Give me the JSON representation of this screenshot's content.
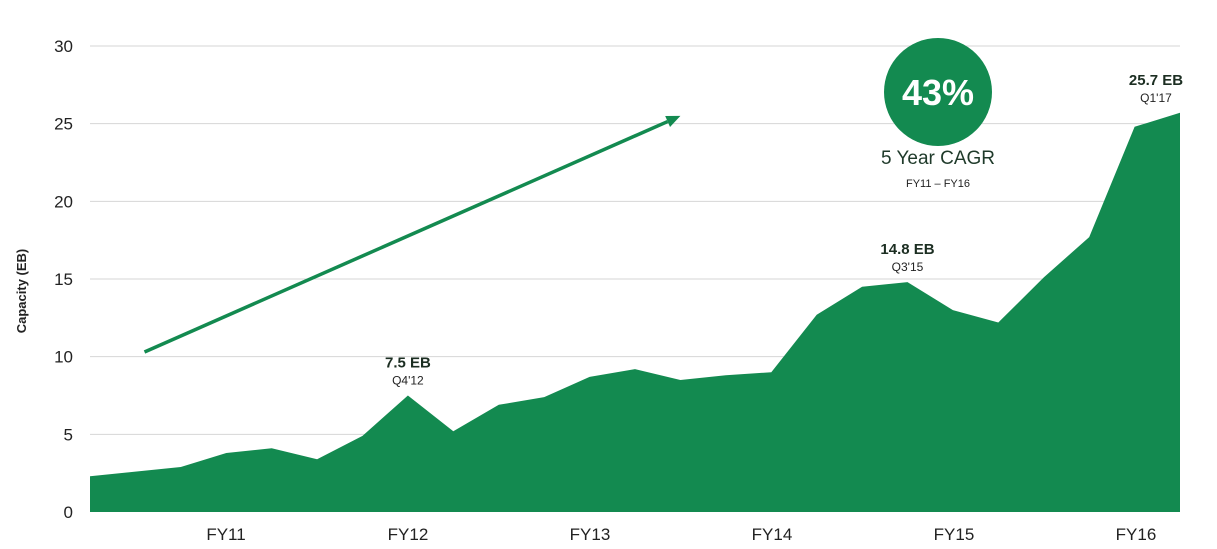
{
  "chart_data": {
    "type": "area",
    "ylabel": "Capacity (EB)",
    "xlabel": "",
    "ylim": [
      0,
      30
    ],
    "yticks": [
      0,
      5,
      10,
      15,
      20,
      25,
      30
    ],
    "grid": true,
    "color": "#138a50",
    "x_ticks": [
      "FY11",
      "FY12",
      "FY13",
      "FY14",
      "FY15",
      "FY16"
    ],
    "series": [
      {
        "values": [
          2.3,
          2.6,
          2.9,
          3.8,
          4.1,
          3.4,
          4.9,
          7.5,
          5.2,
          6.9,
          7.4,
          8.7,
          9.2,
          8.5,
          8.8,
          9.0,
          12.7,
          14.5,
          14.8,
          13.0,
          12.2,
          15.1,
          17.7,
          24.8,
          25.7
        ]
      }
    ],
    "annotations": [
      {
        "value_label": "7.5 EB",
        "period_label": "Q4'12",
        "index": 7
      },
      {
        "value_label": "14.8 EB",
        "period_label": "Q3'15",
        "index": 18
      },
      {
        "value_label": "25.7 EB",
        "period_label": "Q1'17",
        "index": 24
      }
    ],
    "cagr": {
      "percent": "43%",
      "label": "5 Year CAGR",
      "range": "FY11 – FY16",
      "arrow_from": {
        "index": 1.2,
        "value": 10.3
      },
      "arrow_to": {
        "index": 13.0,
        "value": 25.5
      }
    }
  }
}
